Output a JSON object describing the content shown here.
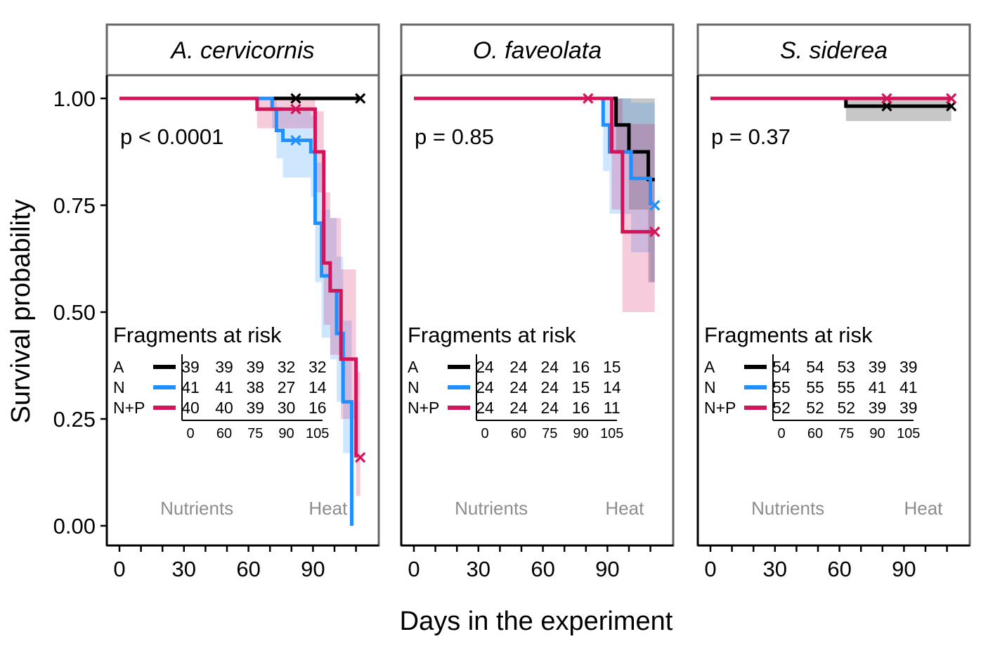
{
  "axes": {
    "ylabel": "Survival probability",
    "xlabel": "Days in the experiment",
    "y_ticks": [
      "1.00",
      "0.75",
      "0.50",
      "0.25",
      "0.00"
    ],
    "x_ticks": [
      "0",
      "30",
      "60",
      "90"
    ]
  },
  "colors": {
    "A": "#000000",
    "N": "#1e90ff",
    "N+P": "#d4145a"
  },
  "chart_data": [
    {
      "type": "line",
      "subtype": "kaplan-meier step",
      "title": "A. cervicornis",
      "xlabel": "Days in the experiment",
      "ylabel": "Survival probability",
      "xlim": [
        0,
        112
      ],
      "ylim": [
        0,
        1
      ],
      "pvalue": "p < 0.0001",
      "series": [
        {
          "name": "A",
          "color": "#000000",
          "steps": [
            [
              0,
              1.0
            ],
            [
              112,
              1.0
            ]
          ],
          "censor": [
            [
              82,
              1.0
            ],
            [
              112,
              1.0
            ]
          ]
        },
        {
          "name": "N",
          "color": "#1e90ff",
          "steps": [
            [
              0,
              1.0
            ],
            [
              71,
              0.975
            ],
            [
              73,
              0.925
            ],
            [
              76,
              0.902
            ],
            [
              89,
              0.875
            ],
            [
              91,
              0.708
            ],
            [
              94,
              0.585
            ],
            [
              98,
              0.55
            ],
            [
              101,
              0.45
            ],
            [
              104,
              0.29
            ],
            [
              108,
              0.0
            ]
          ],
          "censor": [
            [
              82,
              0.902
            ]
          ],
          "band": [
            [
              0,
              1.0,
              1.0
            ],
            [
              71,
              0.93,
              1.0
            ],
            [
              73,
              0.86,
              0.98
            ],
            [
              76,
              0.815,
              0.97
            ],
            [
              89,
              0.77,
              0.96
            ],
            [
              91,
              0.57,
              0.85
            ],
            [
              94,
              0.44,
              0.74
            ],
            [
              98,
              0.39,
              0.72
            ],
            [
              101,
              0.29,
              0.63
            ],
            [
              104,
              0.17,
              0.48
            ],
            [
              108,
              0.0,
              0.0
            ]
          ]
        },
        {
          "name": "N+P",
          "color": "#d4145a",
          "steps": [
            [
              0,
              1.0
            ],
            [
              64,
              0.975
            ],
            [
              91,
              0.875
            ],
            [
              95,
              0.615
            ],
            [
              98,
              0.55
            ],
            [
              103,
              0.39
            ],
            [
              110,
              0.16
            ]
          ],
          "censor": [
            [
              82,
              0.975
            ],
            [
              112,
              0.16
            ]
          ],
          "band": [
            [
              0,
              1.0,
              1.0
            ],
            [
              64,
              0.93,
              1.0
            ],
            [
              91,
              0.78,
              0.97
            ],
            [
              95,
              0.47,
              0.78
            ],
            [
              98,
              0.4,
              0.72
            ],
            [
              103,
              0.25,
              0.6
            ],
            [
              110,
              0.07,
              0.36
            ]
          ]
        }
      ],
      "risk_table": {
        "title": "Fragments at risk",
        "times": [
          "0",
          "60",
          "75",
          "90",
          "105"
        ],
        "rows": [
          {
            "group": "A",
            "values": [
              "39",
              "39",
              "39",
              "32",
              "32"
            ]
          },
          {
            "group": "N",
            "values": [
              "41",
              "41",
              "38",
              "27",
              "14"
            ]
          },
          {
            "group": "N+P",
            "values": [
              "40",
              "40",
              "39",
              "30",
              "16"
            ]
          }
        ]
      },
      "phases": [
        {
          "label": "Nutrients",
          "x": 36
        },
        {
          "label": "Heat",
          "x": 97
        }
      ]
    },
    {
      "type": "line",
      "subtype": "kaplan-meier step",
      "title": "O. faveolata",
      "xlabel": "Days in the experiment",
      "ylabel": "Survival probability",
      "xlim": [
        0,
        112
      ],
      "ylim": [
        0,
        1
      ],
      "pvalue": "p = 0.85",
      "series": [
        {
          "name": "A",
          "color": "#000000",
          "steps": [
            [
              0,
              1.0
            ],
            [
              94,
              0.938
            ],
            [
              100,
              0.875
            ],
            [
              109,
              0.81
            ],
            [
              112,
              0.81
            ]
          ],
          "censor": [],
          "band": [
            [
              0,
              1.0,
              1.0
            ],
            [
              94,
              0.87,
              1.0
            ],
            [
              100,
              0.74,
              1.0
            ],
            [
              109,
              0.57,
              1.0
            ]
          ]
        },
        {
          "name": "N",
          "color": "#1e90ff",
          "steps": [
            [
              0,
              1.0
            ],
            [
              88,
              0.938
            ],
            [
              91,
              0.875
            ],
            [
              101,
              0.813
            ],
            [
              110,
              0.75
            ]
          ],
          "censor": [
            [
              112,
              0.75
            ]
          ],
          "band": [
            [
              0,
              1.0,
              1.0
            ],
            [
              88,
              0.83,
              1.0
            ],
            [
              91,
              0.73,
              1.0
            ],
            [
              101,
              0.64,
              0.99
            ],
            [
              110,
              0.57,
              0.99
            ]
          ]
        },
        {
          "name": "N+P",
          "color": "#d4145a",
          "steps": [
            [
              0,
              1.0
            ],
            [
              92,
              0.875
            ],
            [
              97,
              0.688
            ],
            [
              112,
              0.688
            ]
          ],
          "censor": [
            [
              81,
              1.0
            ],
            [
              112,
              0.688
            ]
          ],
          "band": [
            [
              0,
              1.0,
              1.0
            ],
            [
              92,
              0.74,
              1.0
            ],
            [
              97,
              0.5,
              0.94
            ]
          ]
        }
      ],
      "risk_table": {
        "title": "Fragments at risk",
        "times": [
          "0",
          "60",
          "75",
          "90",
          "105"
        ],
        "rows": [
          {
            "group": "A",
            "values": [
              "24",
              "24",
              "24",
              "16",
              "15"
            ]
          },
          {
            "group": "N",
            "values": [
              "24",
              "24",
              "24",
              "15",
              "14"
            ]
          },
          {
            "group": "N+P",
            "values": [
              "24",
              "24",
              "24",
              "16",
              "11"
            ]
          }
        ]
      },
      "phases": [
        {
          "label": "Nutrients",
          "x": 36
        },
        {
          "label": "Heat",
          "x": 98
        }
      ]
    },
    {
      "type": "line",
      "subtype": "kaplan-meier step",
      "title": "S. siderea",
      "xlabel": "Days in the experiment",
      "ylabel": "Survival probability",
      "xlim": [
        0,
        112
      ],
      "ylim": [
        0,
        1
      ],
      "pvalue": "p = 0.37",
      "series": [
        {
          "name": "A",
          "color": "#000000",
          "steps": [
            [
              0,
              1.0
            ],
            [
              63,
              0.982
            ],
            [
              112,
              0.982
            ]
          ],
          "censor": [
            [
              82,
              0.982
            ],
            [
              112,
              0.982
            ]
          ],
          "band": [
            [
              0,
              1.0,
              1.0
            ],
            [
              63,
              0.947,
              1.0
            ]
          ]
        },
        {
          "name": "N",
          "color": "#1e90ff",
          "steps": [
            [
              0,
              1.0
            ],
            [
              112,
              1.0
            ]
          ],
          "censor": []
        },
        {
          "name": "N+P",
          "color": "#d4145a",
          "steps": [
            [
              0,
              1.0
            ],
            [
              112,
              1.0
            ]
          ],
          "censor": [
            [
              82,
              1.0
            ],
            [
              112,
              1.0
            ]
          ]
        }
      ],
      "risk_table": {
        "title": "Fragments at risk",
        "times": [
          "0",
          "60",
          "75",
          "90",
          "105"
        ],
        "rows": [
          {
            "group": "A",
            "values": [
              "54",
              "54",
              "53",
              "39",
              "39"
            ]
          },
          {
            "group": "N",
            "values": [
              "55",
              "55",
              "55",
              "41",
              "41"
            ]
          },
          {
            "group": "N+P",
            "values": [
              "52",
              "52",
              "52",
              "39",
              "39"
            ]
          }
        ]
      },
      "phases": [
        {
          "label": "Nutrients",
          "x": 36
        },
        {
          "label": "Heat",
          "x": 99
        }
      ]
    }
  ]
}
